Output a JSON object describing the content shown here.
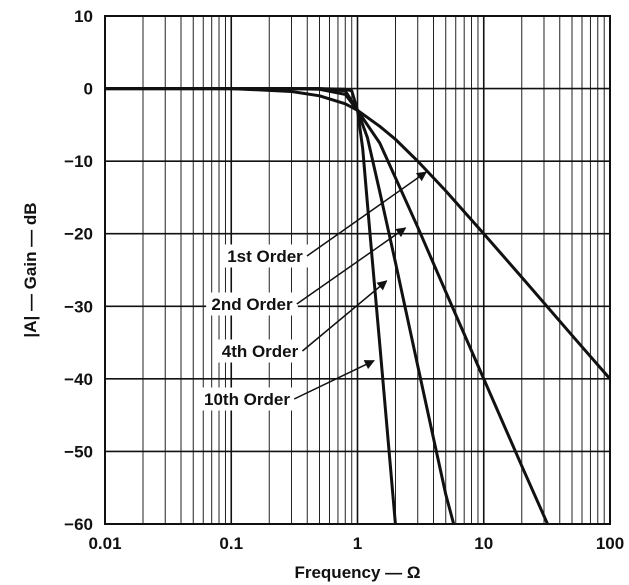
{
  "chart_data": {
    "type": "line",
    "title": "",
    "xlabel": "Frequency — Ω",
    "ylabel": "|A| — Gain — dB",
    "x_scale": "log",
    "xlim": [
      0.01,
      100
    ],
    "ylim": [
      -60,
      10
    ],
    "grid": true,
    "x_ticks": [
      {
        "value": 0.01,
        "label": "0.01"
      },
      {
        "value": 0.1,
        "label": "0.1"
      },
      {
        "value": 1,
        "label": "1"
      },
      {
        "value": 10,
        "label": "10"
      },
      {
        "value": 100,
        "label": "100"
      }
    ],
    "y_ticks": [
      {
        "value": 10,
        "label": "10"
      },
      {
        "value": 0,
        "label": "0"
      },
      {
        "value": -10,
        "label": "−10"
      },
      {
        "value": -20,
        "label": "−20"
      },
      {
        "value": -30,
        "label": "−30"
      },
      {
        "value": -40,
        "label": "−40"
      },
      {
        "value": -50,
        "label": "−50"
      },
      {
        "value": -60,
        "label": "−60"
      }
    ],
    "series": [
      {
        "order": 1,
        "x": [
          0.01,
          0.1,
          0.3,
          0.5,
          0.8,
          1,
          1.5,
          2,
          3,
          5,
          10,
          20,
          50,
          100
        ],
        "y": [
          0,
          0,
          -0.4,
          -1,
          -2.1,
          -3,
          -5.2,
          -7,
          -10,
          -14.1,
          -20,
          -26,
          -34,
          -40
        ]
      },
      {
        "order": 2,
        "x": [
          0.01,
          0.1,
          0.3,
          0.5,
          0.8,
          1,
          1.5,
          2,
          3,
          5,
          10,
          20,
          36
        ],
        "y": [
          0,
          0,
          0,
          -0.1,
          -0.8,
          -3,
          -7.5,
          -12.3,
          -19.1,
          -28,
          -40,
          -52,
          -62
        ]
      },
      {
        "order": 4,
        "x": [
          0.01,
          0.1,
          0.3,
          0.5,
          0.8,
          1,
          1.2,
          1.5,
          2,
          3,
          4,
          5,
          6.2
        ],
        "y": [
          0,
          0,
          0,
          0,
          -0.3,
          -3,
          -6.8,
          -14.2,
          -24,
          -38.2,
          -48.2,
          -55.9,
          -62
        ]
      },
      {
        "order": 10,
        "x": [
          0.01,
          0.1,
          0.5,
          0.8,
          0.9,
          1,
          1.1,
          1.2,
          1.3,
          1.5,
          1.8,
          2.1
        ],
        "y": [
          0,
          0,
          0,
          -0.1,
          -0.3,
          -3,
          -8.3,
          -16,
          -23,
          -35.2,
          -51,
          -64.4
        ]
      }
    ],
    "annotations": [
      {
        "text": "1st Order",
        "points_to": {
          "x": 3.5,
          "y": -11.5
        }
      },
      {
        "text": "2nd Order",
        "points_to": {
          "x": 2.4,
          "y": -19.2
        }
      },
      {
        "text": "4th Order",
        "points_to": {
          "x": 1.7,
          "y": -26.5
        }
      },
      {
        "text": "10th Order",
        "points_to": {
          "x": 1.35,
          "y": -37.5
        }
      }
    ]
  }
}
